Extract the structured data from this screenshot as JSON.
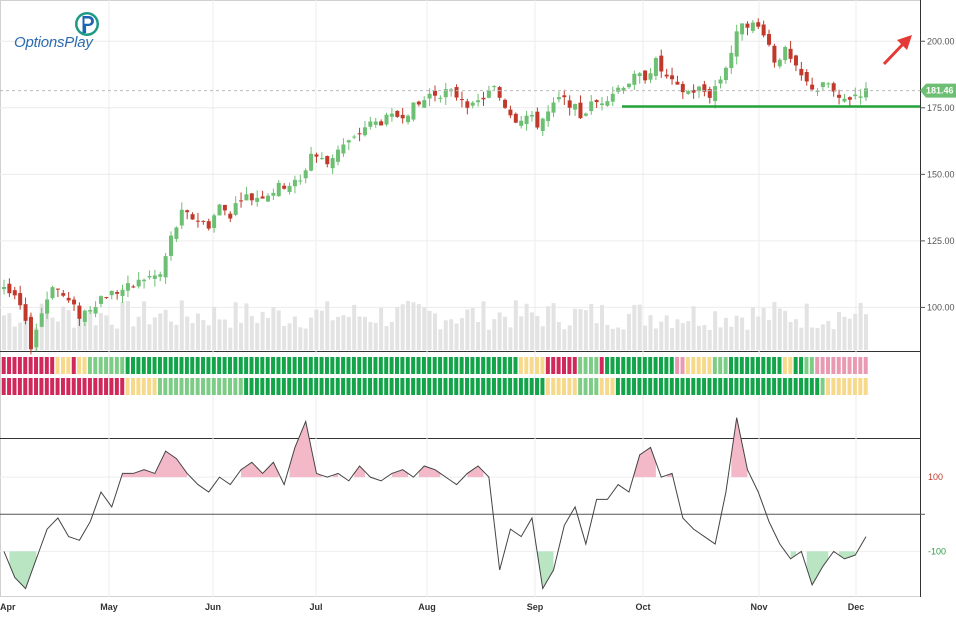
{
  "brand": {
    "name": "OptionsPlay"
  },
  "colors": {
    "up": "#6dbf73",
    "down": "#c0392b",
    "support": "#22a33a",
    "arrow": "#e53935",
    "price_tag": "#6dbf73",
    "volume": "#e3e3e3",
    "band_red": "#d0285a",
    "band_green": "#13a44a",
    "band_lightgreen": "#7ccc86",
    "band_yellow": "#f7d98c",
    "band_pink": "#e89ab2",
    "cci_fill_over": "#f3b9c8",
    "cci_fill_under": "#b9e5c2"
  },
  "chart_data": [
    {
      "type": "candlestick",
      "price_axis": {
        "ticks": [
          "200.00",
          "175.00",
          "150.00",
          "125.00",
          "100.00"
        ],
        "range": [
          84,
          214
        ]
      },
      "last_price": "181.46",
      "support_level": 175.5,
      "trend_arrow": "up",
      "months": [
        "Apr",
        "May",
        "Jun",
        "Jul",
        "Aug",
        "Sep",
        "Oct",
        "Nov",
        "Dec"
      ],
      "close_anchors": [
        [
          0,
          108
        ],
        [
          3,
          100
        ],
        [
          5,
          86
        ],
        [
          7,
          98
        ],
        [
          9,
          109
        ],
        [
          12,
          102
        ],
        [
          14,
          97
        ],
        [
          16,
          100
        ],
        [
          18,
          104
        ],
        [
          21,
          106
        ],
        [
          24,
          108
        ],
        [
          26,
          111
        ],
        [
          29,
          112
        ],
        [
          31,
          126
        ],
        [
          33,
          135
        ],
        [
          36,
          133
        ],
        [
          38,
          131
        ],
        [
          40,
          138
        ],
        [
          42,
          135
        ],
        [
          44,
          142
        ],
        [
          46,
          141
        ],
        [
          49,
          143
        ],
        [
          52,
          146
        ],
        [
          55,
          147
        ],
        [
          57,
          158
        ],
        [
          60,
          154
        ],
        [
          62,
          160
        ],
        [
          65,
          163
        ],
        [
          67,
          168
        ],
        [
          70,
          170
        ],
        [
          72,
          171
        ],
        [
          75,
          174
        ],
        [
          77,
          176
        ],
        [
          79,
          180
        ],
        [
          82,
          181
        ],
        [
          85,
          179
        ],
        [
          87,
          175
        ],
        [
          89,
          179
        ],
        [
          91,
          182
        ],
        [
          93,
          176
        ],
        [
          95,
          171
        ],
        [
          97,
          172
        ],
        [
          99,
          169
        ],
        [
          101,
          173
        ],
        [
          103,
          178
        ],
        [
          105,
          177
        ],
        [
          107,
          172
        ],
        [
          109,
          176
        ],
        [
          111,
          178
        ],
        [
          113,
          181
        ],
        [
          115,
          184
        ],
        [
          117,
          186
        ],
        [
          119,
          187
        ],
        [
          121,
          192
        ],
        [
          123,
          186
        ],
        [
          125,
          182
        ],
        [
          127,
          181
        ],
        [
          129,
          182
        ],
        [
          131,
          180
        ],
        [
          133,
          186
        ],
        [
          135,
          196
        ],
        [
          137,
          208
        ],
        [
          139,
          206
        ],
        [
          141,
          204
        ],
        [
          143,
          193
        ],
        [
          145,
          196
        ],
        [
          147,
          189
        ],
        [
          149,
          184
        ],
        [
          151,
          182
        ],
        [
          153,
          184
        ],
        [
          155,
          177
        ],
        [
          157,
          179
        ],
        [
          159,
          181
        ]
      ],
      "volume_range": [
        0,
        1
      ]
    },
    {
      "type": "band",
      "rows": [
        {
          "segments": [
            [
              0,
              9,
              "red"
            ],
            [
              10,
              12,
              "yellow"
            ],
            [
              13,
              13,
              "red"
            ],
            [
              14,
              15,
              "yellow"
            ],
            [
              16,
              22,
              "lightgreen"
            ],
            [
              23,
              95,
              "green"
            ],
            [
              96,
              100,
              "yellow"
            ],
            [
              101,
              106,
              "red"
            ],
            [
              107,
              110,
              "lightgreen"
            ],
            [
              111,
              111,
              "red"
            ],
            [
              112,
              124,
              "green"
            ],
            [
              125,
              126,
              "pink"
            ],
            [
              127,
              131,
              "yellow"
            ],
            [
              132,
              134,
              "lightgreen"
            ],
            [
              135,
              144,
              "green"
            ],
            [
              145,
              146,
              "yellow"
            ],
            [
              147,
              148,
              "green"
            ],
            [
              149,
              150,
              "lightgreen"
            ],
            [
              151,
              160,
              "pink"
            ]
          ]
        },
        {
          "segments": [
            [
              0,
              22,
              "red"
            ],
            [
              23,
              28,
              "yellow"
            ],
            [
              29,
              44,
              "lightgreen"
            ],
            [
              45,
              100,
              "green"
            ],
            [
              101,
              106,
              "yellow"
            ],
            [
              107,
              110,
              "lightgreen"
            ],
            [
              111,
              113,
              "yellow"
            ],
            [
              114,
              151,
              "green"
            ],
            [
              152,
              152,
              "lightgreen"
            ],
            [
              153,
              160,
              "yellow"
            ]
          ]
        }
      ]
    },
    {
      "type": "line",
      "name": "",
      "ticks": [
        "100",
        "-100"
      ],
      "range": [
        -220,
        200
      ],
      "anchors": [
        [
          0,
          -100
        ],
        [
          2,
          -170
        ],
        [
          4,
          -200
        ],
        [
          6,
          -120
        ],
        [
          8,
          -40
        ],
        [
          10,
          -10
        ],
        [
          12,
          -60
        ],
        [
          14,
          -70
        ],
        [
          16,
          -20
        ],
        [
          18,
          60
        ],
        [
          20,
          20
        ],
        [
          22,
          110
        ],
        [
          24,
          110
        ],
        [
          26,
          120
        ],
        [
          28,
          110
        ],
        [
          30,
          170
        ],
        [
          32,
          150
        ],
        [
          34,
          110
        ],
        [
          36,
          80
        ],
        [
          38,
          60
        ],
        [
          40,
          100
        ],
        [
          42,
          80
        ],
        [
          44,
          120
        ],
        [
          46,
          140
        ],
        [
          48,
          110
        ],
        [
          50,
          140
        ],
        [
          52,
          80
        ],
        [
          54,
          180
        ],
        [
          56,
          250
        ],
        [
          58,
          110
        ],
        [
          60,
          100
        ],
        [
          62,
          110
        ],
        [
          64,
          90
        ],
        [
          66,
          130
        ],
        [
          68,
          100
        ],
        [
          70,
          90
        ],
        [
          72,
          110
        ],
        [
          74,
          120
        ],
        [
          76,
          100
        ],
        [
          78,
          130
        ],
        [
          80,
          120
        ],
        [
          82,
          100
        ],
        [
          84,
          80
        ],
        [
          86,
          110
        ],
        [
          88,
          130
        ],
        [
          90,
          100
        ],
        [
          92,
          -150
        ],
        [
          94,
          -40
        ],
        [
          96,
          -60
        ],
        [
          98,
          -10
        ],
        [
          100,
          -200
        ],
        [
          102,
          -150
        ],
        [
          104,
          -30
        ],
        [
          106,
          20
        ],
        [
          108,
          -80
        ],
        [
          110,
          40
        ],
        [
          112,
          40
        ],
        [
          114,
          80
        ],
        [
          116,
          60
        ],
        [
          118,
          160
        ],
        [
          120,
          180
        ],
        [
          122,
          100
        ],
        [
          124,
          110
        ],
        [
          126,
          -10
        ],
        [
          128,
          -40
        ],
        [
          130,
          -60
        ],
        [
          132,
          -80
        ],
        [
          134,
          60
        ],
        [
          136,
          260
        ],
        [
          138,
          120
        ],
        [
          140,
          60
        ],
        [
          142,
          -20
        ],
        [
          144,
          -80
        ],
        [
          146,
          -120
        ],
        [
          148,
          -100
        ],
        [
          150,
          -190
        ],
        [
          152,
          -140
        ],
        [
          154,
          -100
        ],
        [
          156,
          -120
        ],
        [
          158,
          -110
        ],
        [
          160,
          -60
        ]
      ]
    }
  ]
}
